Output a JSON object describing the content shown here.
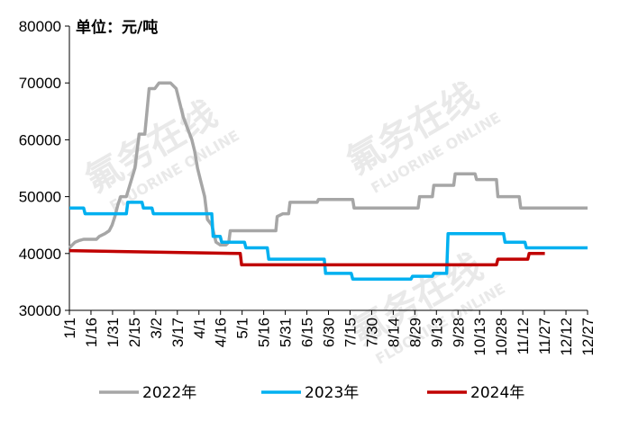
{
  "chart_data": {
    "type": "line",
    "unit_label": "单位：元/吨",
    "ylim": [
      30000,
      80000
    ],
    "y_ticks": [
      "30000",
      "40000",
      "50000",
      "60000",
      "70000",
      "80000"
    ],
    "x_range": [
      0,
      364
    ],
    "x_ticks": [
      "1/1",
      "1/16",
      "1/31",
      "2/15",
      "3/2",
      "3/17",
      "4/1",
      "4/16",
      "5/1",
      "5/16",
      "5/31",
      "6/15",
      "6/30",
      "7/15",
      "7/30",
      "8/14",
      "8/29",
      "9/13",
      "9/28",
      "10/13",
      "10/28",
      "11/12",
      "11/27",
      "12/12",
      "12/27"
    ],
    "grid": false,
    "legend_position": "bottom",
    "watermark": {
      "cn": "氟务在线",
      "en": "FLUORINE ONLINE"
    },
    "series": [
      {
        "name": "2022年",
        "color": "#a6a6a6",
        "x": [
          0,
          4,
          7,
          10,
          19,
          21,
          25,
          28,
          30,
          32,
          34,
          36,
          38,
          40,
          46,
          49,
          50,
          51,
          52,
          53,
          56,
          60,
          63,
          66,
          69,
          71,
          75,
          80,
          86,
          88,
          90,
          92,
          95,
          97,
          100,
          103,
          106,
          108,
          110,
          112,
          113,
          114,
          117,
          145,
          146,
          150,
          154,
          155,
          174,
          175,
          180,
          199,
          200,
          205,
          219,
          220,
          245,
          246,
          255,
          256,
          270,
          271,
          285,
          286,
          300,
          301,
          310,
          311,
          316,
          317,
          325,
          326,
          364
        ],
        "y": [
          41000,
          42000,
          42300,
          42500,
          42500,
          43000,
          43500,
          44000,
          45000,
          46500,
          48500,
          50000,
          50000,
          50000,
          55000,
          61000,
          61000,
          61000,
          61000,
          61000,
          69000,
          69000,
          70000,
          70000,
          70000,
          70000,
          69000,
          64000,
          60000,
          58000,
          55000,
          53000,
          50000,
          46000,
          45000,
          42000,
          41500,
          41500,
          41500,
          42000,
          44000,
          44000,
          44000,
          44000,
          46500,
          47000,
          47000,
          49000,
          49000,
          49500,
          49500,
          49500,
          48000,
          48000,
          48000,
          48000,
          48000,
          50000,
          50000,
          52000,
          52000,
          54000,
          54000,
          53000,
          53000,
          50000,
          50000,
          50000,
          50000,
          48000,
          48000,
          48000,
          48000
        ]
      },
      {
        "name": "2023年",
        "color": "#00b0f0",
        "x": [
          0,
          10,
          11,
          40,
          41,
          51,
          52,
          58,
          59,
          100,
          101,
          106,
          107,
          123,
          124,
          139,
          140,
          179,
          180,
          198,
          199,
          240,
          241,
          255,
          256,
          265,
          266,
          305,
          306,
          320,
          321,
          364
        ],
        "y": [
          48000,
          48000,
          47000,
          47000,
          49000,
          49000,
          48000,
          48000,
          47000,
          47000,
          43000,
          43000,
          42000,
          42000,
          41000,
          41000,
          39000,
          39000,
          36500,
          36500,
          35500,
          35500,
          36000,
          36000,
          36500,
          36500,
          43500,
          43500,
          42000,
          42000,
          41000,
          41000
        ]
      },
      {
        "name": "2024年",
        "color": "#c00000",
        "x": [
          0,
          120,
          121,
          247,
          248,
          300,
          301,
          322,
          323,
          334
        ],
        "y": [
          40500,
          40000,
          38000,
          38000,
          38000,
          38000,
          39000,
          39000,
          40000,
          40000
        ]
      }
    ]
  }
}
